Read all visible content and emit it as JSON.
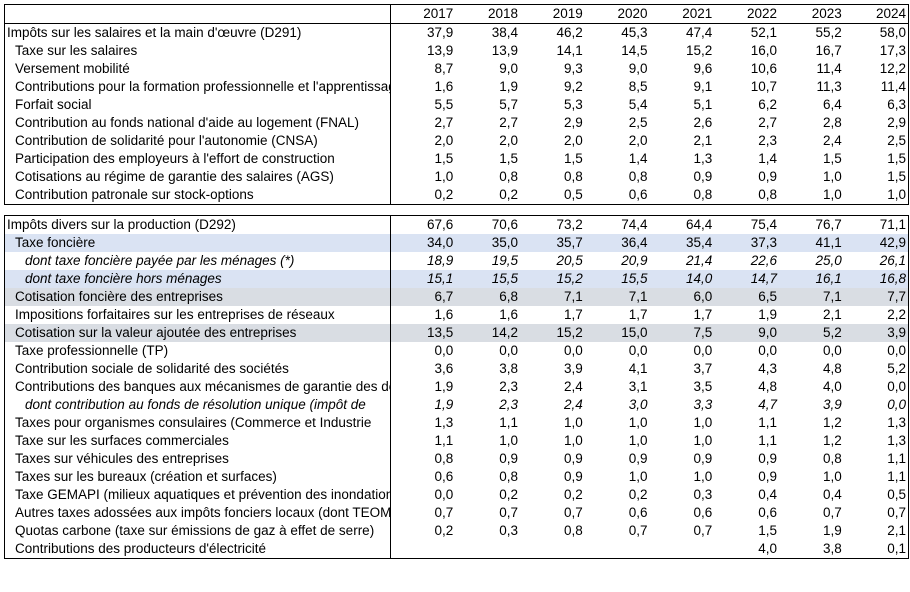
{
  "years": [
    "2017",
    "2018",
    "2019",
    "2020",
    "2021",
    "2022",
    "2023",
    "2024"
  ],
  "section1": [
    {
      "label": "Impôts sur les salaires et la main d'œuvre (D291)",
      "style": "top",
      "values": [
        "37,9",
        "38,4",
        "46,2",
        "45,3",
        "47,4",
        "52,1",
        "55,2",
        "58,0"
      ]
    },
    {
      "label": "Taxe sur les salaires",
      "style": "ind",
      "values": [
        "13,9",
        "13,9",
        "14,1",
        "14,5",
        "15,2",
        "16,0",
        "16,7",
        "17,3"
      ]
    },
    {
      "label": "Versement mobilité",
      "style": "ind",
      "values": [
        "8,7",
        "9,0",
        "9,3",
        "9,0",
        "9,6",
        "10,6",
        "11,4",
        "12,2"
      ]
    },
    {
      "label": "Contributions pour la formation professionnelle et l'apprentissage",
      "style": "ind",
      "values": [
        "1,6",
        "1,9",
        "9,2",
        "8,5",
        "9,1",
        "10,7",
        "11,3",
        "11,4"
      ]
    },
    {
      "label": "Forfait social",
      "style": "ind",
      "values": [
        "5,5",
        "5,7",
        "5,3",
        "5,4",
        "5,1",
        "6,2",
        "6,4",
        "6,3"
      ]
    },
    {
      "label": "Contribution au fonds national d'aide au logement (FNAL)",
      "style": "ind",
      "values": [
        "2,7",
        "2,7",
        "2,9",
        "2,5",
        "2,6",
        "2,7",
        "2,8",
        "2,9"
      ]
    },
    {
      "label": "Contribution de solidarité pour l'autonomie (CNSA)",
      "style": "ind",
      "values": [
        "2,0",
        "2,0",
        "2,0",
        "2,0",
        "2,1",
        "2,3",
        "2,4",
        "2,5"
      ]
    },
    {
      "label": "Participation des employeurs à l'effort de construction",
      "style": "ind",
      "values": [
        "1,5",
        "1,5",
        "1,5",
        "1,4",
        "1,3",
        "1,4",
        "1,5",
        "1,5"
      ]
    },
    {
      "label": "Cotisations au régime de garantie des salaires (AGS)",
      "style": "ind",
      "values": [
        "1,0",
        "0,8",
        "0,8",
        "0,8",
        "0,9",
        "0,9",
        "1,0",
        "1,5"
      ]
    },
    {
      "label": "Contribution patronale sur stock-options",
      "style": "ind",
      "values": [
        "0,2",
        "0,2",
        "0,5",
        "0,6",
        "0,8",
        "0,8",
        "1,0",
        "1,0"
      ]
    }
  ],
  "section2": [
    {
      "label": "Impôts divers sur la production (D292)",
      "style": "top",
      "bg": "none",
      "values": [
        "67,6",
        "70,6",
        "73,2",
        "74,4",
        "64,4",
        "75,4",
        "76,7",
        "71,1"
      ]
    },
    {
      "label": "Taxe foncière",
      "style": "ind",
      "bg": "blue",
      "values": [
        "34,0",
        "35,0",
        "35,7",
        "36,4",
        "35,4",
        "37,3",
        "41,1",
        "42,9"
      ]
    },
    {
      "label": "dont taxe foncière payée par les ménages (*)",
      "style": "itind",
      "bg": "none",
      "values": [
        "18,9",
        "19,5",
        "20,5",
        "20,9",
        "21,4",
        "22,6",
        "25,0",
        "26,1"
      ]
    },
    {
      "label": "dont taxe foncière hors ménages",
      "style": "itind",
      "bg": "blue",
      "values": [
        "15,1",
        "15,5",
        "15,2",
        "15,5",
        "14,0",
        "14,7",
        "16,1",
        "16,8"
      ]
    },
    {
      "label": "Cotisation foncière des entreprises",
      "style": "ind",
      "bg": "gray",
      "values": [
        "6,7",
        "6,8",
        "7,1",
        "7,1",
        "6,0",
        "6,5",
        "7,1",
        "7,7"
      ]
    },
    {
      "label": "Impositions forfaitaires sur les entreprises de réseaux",
      "style": "ind",
      "bg": "none",
      "values": [
        "1,6",
        "1,6",
        "1,7",
        "1,7",
        "1,7",
        "1,9",
        "2,1",
        "2,2"
      ]
    },
    {
      "label": "Cotisation sur la valeur ajoutée des entreprises",
      "style": "ind",
      "bg": "gray",
      "values": [
        "13,5",
        "14,2",
        "15,2",
        "15,0",
        "7,5",
        "9,0",
        "5,2",
        "3,9"
      ]
    },
    {
      "label": "Taxe professionnelle (TP)",
      "style": "ind",
      "bg": "none",
      "values": [
        "0,0",
        "0,0",
        "0,0",
        "0,0",
        "0,0",
        "0,0",
        "0,0",
        "0,0"
      ]
    },
    {
      "label": "Contribution sociale de solidarité des sociétés",
      "style": "ind",
      "bg": "none",
      "values": [
        "3,6",
        "3,8",
        "3,9",
        "4,1",
        "3,7",
        "4,3",
        "4,8",
        "5,2"
      ]
    },
    {
      "label": "Contributions des banques aux mécanismes de garantie des dépôts",
      "style": "ind",
      "bg": "none",
      "values": [
        "1,9",
        "2,3",
        "2,4",
        "3,1",
        "3,5",
        "4,8",
        "4,0",
        "0,0"
      ]
    },
    {
      "label": "dont contribution au fonds de résolution unique (impôt de",
      "style": "itind",
      "bg": "none",
      "values": [
        "1,9",
        "2,3",
        "2,4",
        "3,0",
        "3,3",
        "4,7",
        "3,9",
        "0,0"
      ]
    },
    {
      "label": "Taxes pour organismes consulaires (Commerce et Industrie",
      "style": "ind",
      "bg": "none",
      "values": [
        "1,3",
        "1,1",
        "1,0",
        "1,0",
        "1,0",
        "1,1",
        "1,2",
        "1,3"
      ]
    },
    {
      "label": "Taxe sur les surfaces commerciales",
      "style": "ind",
      "bg": "none",
      "values": [
        "1,1",
        "1,0",
        "1,0",
        "1,0",
        "1,0",
        "1,1",
        "1,2",
        "1,3"
      ]
    },
    {
      "label": "Taxes sur véhicules des entreprises",
      "style": "ind",
      "bg": "none",
      "values": [
        "0,8",
        "0,9",
        "0,9",
        "0,9",
        "0,9",
        "0,9",
        "0,8",
        "1,1"
      ]
    },
    {
      "label": "Taxes sur les bureaux (création et surfaces)",
      "style": "ind",
      "bg": "none",
      "values": [
        "0,6",
        "0,8",
        "0,9",
        "1,0",
        "1,0",
        "0,9",
        "1,0",
        "1,1"
      ]
    },
    {
      "label": "Taxe GEMAPI (milieux aquatiques et prévention des inondations)",
      "style": "ind",
      "bg": "none",
      "values": [
        "0,0",
        "0,2",
        "0,2",
        "0,2",
        "0,3",
        "0,4",
        "0,4",
        "0,5"
      ]
    },
    {
      "label": "Autres taxes adossées aux impôts fonciers locaux (dont TEOM)",
      "style": "ind",
      "bg": "none",
      "values": [
        "0,7",
        "0,7",
        "0,7",
        "0,6",
        "0,6",
        "0,6",
        "0,7",
        "0,7"
      ]
    },
    {
      "label": "Quotas carbone (taxe sur émissions de gaz à effet de serre)",
      "style": "ind",
      "bg": "none",
      "values": [
        "0,2",
        "0,3",
        "0,8",
        "0,7",
        "0,7",
        "1,5",
        "1,9",
        "2,1"
      ]
    },
    {
      "label": "Contributions des producteurs d'électricité",
      "style": "ind",
      "bg": "none",
      "values": [
        "",
        "",
        "",
        "",
        "",
        "4,0",
        "3,8",
        "0,1"
      ]
    }
  ]
}
